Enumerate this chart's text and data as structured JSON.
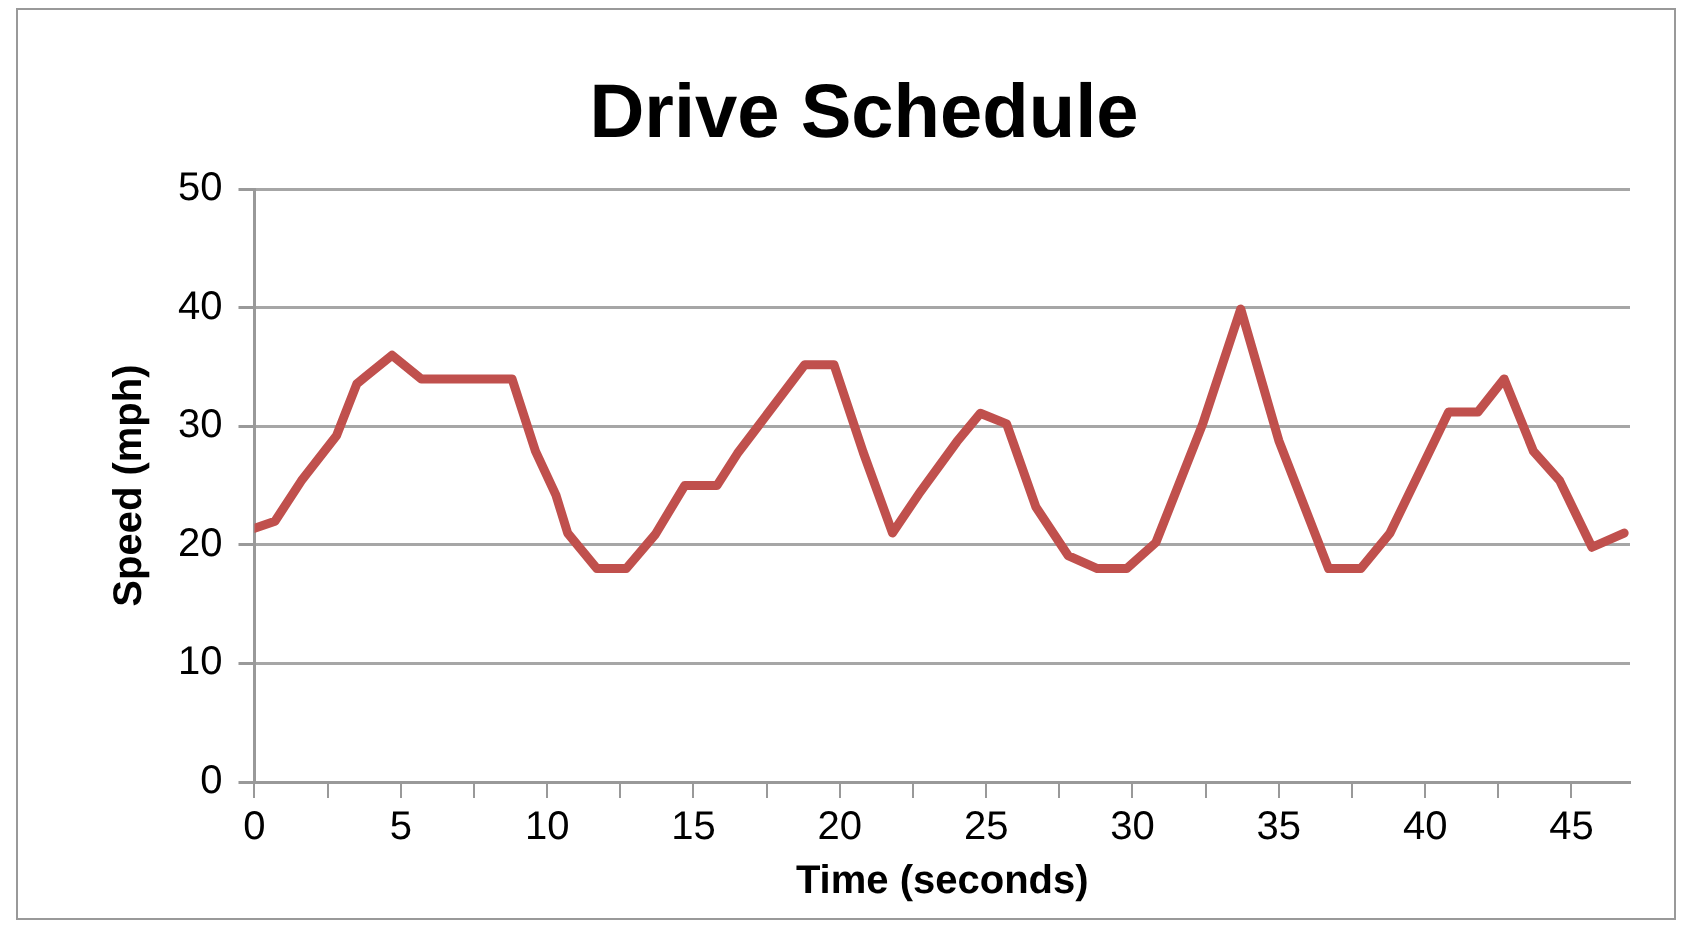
{
  "chart_data": {
    "type": "line",
    "title": "Drive Schedule",
    "xlabel": "Time (seconds)",
    "ylabel": "Speed (mph)",
    "x": [
      0,
      0.7,
      1.6,
      2.8,
      3.5,
      3.8,
      4.7,
      5.7,
      8.8,
      9.6,
      10.3,
      10.7,
      11.7,
      12.7,
      13.7,
      14.7,
      15.8,
      16.5,
      18.8,
      19.8,
      20.8,
      21.8,
      22.7,
      24.0,
      24.8,
      25.7,
      26.7,
      27.8,
      28.8,
      29.8,
      30.8,
      32.4,
      33.7,
      35.0,
      36.7,
      37.8,
      38.8,
      40.8,
      41.8,
      42.7,
      43.7,
      44.6,
      45.7,
      46.8
    ],
    "series": [
      {
        "color": "#c0504d",
        "values": [
          21.4,
          22,
          25.4,
          29.2,
          33.6,
          34.2,
          36,
          34,
          34,
          27.9,
          24.2,
          21,
          18,
          18,
          20.9,
          25,
          25,
          27.7,
          35.2,
          35.2,
          27.8,
          21,
          24.3,
          28.7,
          31.1,
          30.2,
          23.2,
          19.1,
          18,
          18,
          20.2,
          30.2,
          39.9,
          28.8,
          18,
          18,
          21,
          31.2,
          31.2,
          34,
          27.9,
          25.4,
          19.8,
          21
        ]
      }
    ],
    "xlim": [
      0,
      47
    ],
    "xticks": [
      0,
      {
        "value": 2.5,
        "label": null
      },
      5,
      {
        "value": 7.5,
        "label": null
      },
      10,
      {
        "value": 12.5,
        "label": null
      },
      15,
      {
        "value": 17.5,
        "label": null
      },
      20,
      {
        "value": 22.5,
        "label": null
      },
      25,
      {
        "value": 27.5,
        "label": null
      },
      30,
      {
        "value": 32.5,
        "label": null
      },
      35,
      {
        "value": 37.5,
        "label": null
      },
      40,
      {
        "value": 42.5,
        "label": null
      },
      45
    ],
    "ylim": [
      0,
      50
    ],
    "yticks": [
      0,
      10,
      20,
      30,
      40,
      50
    ],
    "grid": "y",
    "legend": false,
    "marker": "none",
    "line_style": "solid"
  }
}
